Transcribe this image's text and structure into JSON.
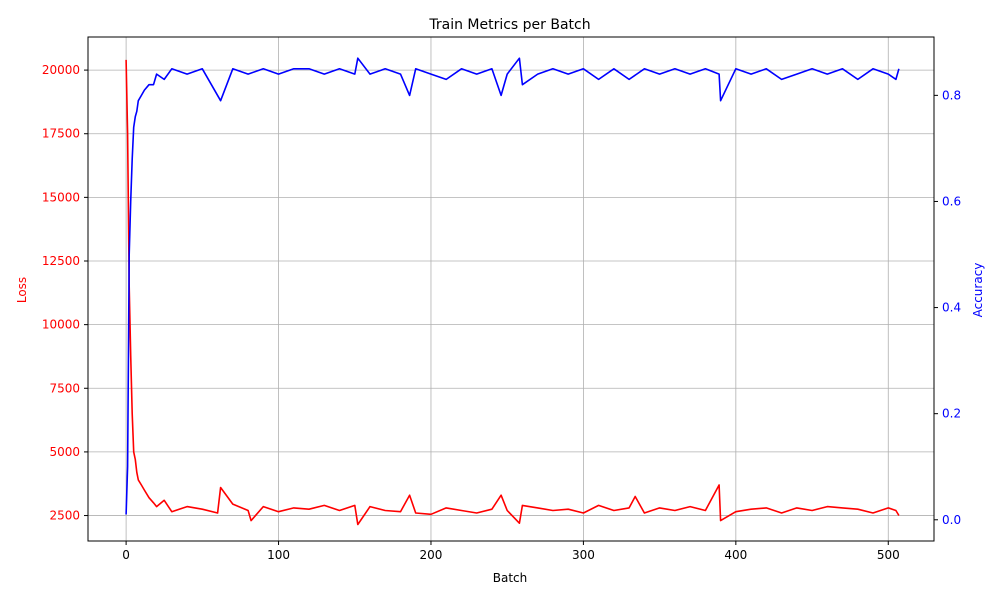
{
  "chart_data": {
    "type": "line",
    "title": "Train Metrics per Batch",
    "xlabel": "Batch",
    "xlim": [
      -25,
      530
    ],
    "xticks": [
      0,
      100,
      200,
      300,
      400,
      500
    ],
    "grid": true,
    "axes": {
      "left": {
        "label": "Loss",
        "color": "#ff0000",
        "ylim": [
          1500,
          21300
        ],
        "ticks": [
          2500,
          5000,
          7500,
          10000,
          12500,
          15000,
          17500,
          20000
        ]
      },
      "right": {
        "label": "Accuracy",
        "color": "#0000ff",
        "ylim": [
          -0.04,
          0.91
        ],
        "ticks": [
          "0.0",
          "0.2",
          "0.4",
          "0.6",
          "0.8"
        ]
      }
    },
    "series": [
      {
        "axis": "left",
        "color": "#ff0000",
        "x": [
          0,
          1,
          2,
          3,
          4,
          5,
          6,
          7,
          8,
          10,
          12,
          15,
          18,
          20,
          25,
          30,
          40,
          50,
          60,
          62,
          70,
          80,
          82,
          90,
          100,
          110,
          120,
          130,
          140,
          150,
          152,
          160,
          170,
          180,
          186,
          190,
          200,
          210,
          220,
          230,
          240,
          246,
          250,
          258,
          260,
          270,
          280,
          290,
          300,
          310,
          320,
          330,
          334,
          340,
          350,
          360,
          370,
          380,
          389,
          390,
          400,
          410,
          420,
          430,
          440,
          450,
          460,
          470,
          480,
          490,
          500,
          505,
          507
        ],
        "values": [
          20400,
          17500,
          11500,
          8800,
          6500,
          5000,
          4700,
          4200,
          3900,
          3700,
          3500,
          3200,
          3000,
          2850,
          3100,
          2650,
          2850,
          2750,
          2600,
          3600,
          2950,
          2700,
          2300,
          2850,
          2650,
          2800,
          2750,
          2900,
          2700,
          2900,
          2150,
          2850,
          2700,
          2650,
          3300,
          2600,
          2550,
          2800,
          2700,
          2600,
          2750,
          3300,
          2700,
          2200,
          2900,
          2800,
          2700,
          2750,
          2600,
          2900,
          2700,
          2800,
          3250,
          2600,
          2800,
          2700,
          2850,
          2700,
          3700,
          2300,
          2650,
          2750,
          2800,
          2600,
          2800,
          2700,
          2850,
          2800,
          2750,
          2600,
          2800,
          2700,
          2500
        ]
      },
      {
        "axis": "right",
        "color": "#0000ff",
        "x": [
          0,
          1,
          2,
          3,
          4,
          5,
          6,
          7,
          8,
          10,
          12,
          15,
          18,
          20,
          25,
          30,
          40,
          50,
          62,
          70,
          80,
          90,
          100,
          110,
          120,
          130,
          140,
          150,
          152,
          160,
          170,
          180,
          186,
          190,
          200,
          210,
          220,
          230,
          240,
          246,
          250,
          258,
          260,
          270,
          280,
          290,
          300,
          310,
          320,
          330,
          340,
          350,
          360,
          370,
          380,
          389,
          390,
          400,
          410,
          420,
          430,
          440,
          450,
          460,
          470,
          480,
          490,
          500,
          505,
          507
        ],
        "values": [
          0.01,
          0.1,
          0.5,
          0.6,
          0.68,
          0.74,
          0.76,
          0.77,
          0.79,
          0.8,
          0.81,
          0.82,
          0.82,
          0.84,
          0.83,
          0.85,
          0.84,
          0.85,
          0.79,
          0.85,
          0.84,
          0.85,
          0.84,
          0.85,
          0.85,
          0.84,
          0.85,
          0.84,
          0.87,
          0.84,
          0.85,
          0.84,
          0.8,
          0.85,
          0.84,
          0.83,
          0.85,
          0.84,
          0.85,
          0.8,
          0.84,
          0.87,
          0.82,
          0.84,
          0.85,
          0.84,
          0.85,
          0.83,
          0.85,
          0.83,
          0.85,
          0.84,
          0.85,
          0.84,
          0.85,
          0.84,
          0.79,
          0.85,
          0.84,
          0.85,
          0.83,
          0.84,
          0.85,
          0.84,
          0.85,
          0.83,
          0.85,
          0.84,
          0.83,
          0.85
        ]
      }
    ]
  }
}
